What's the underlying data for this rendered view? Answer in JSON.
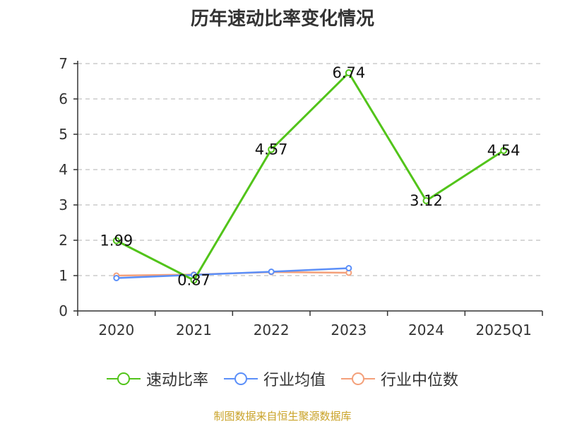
{
  "title": "历年速动比率变化情况",
  "source": "制图数据来自恒生聚源数据库",
  "chart_data": {
    "type": "line",
    "categories": [
      "2020",
      "2021",
      "2022",
      "2023",
      "2024",
      "2025Q1"
    ],
    "ylim": [
      0,
      7
    ],
    "yticks": [
      0,
      1,
      2,
      3,
      4,
      5,
      6,
      7
    ],
    "grid": true,
    "legend_position": "bottom",
    "series": [
      {
        "name": "速动比率",
        "color": "#52c41a",
        "values": [
          1.99,
          0.87,
          4.57,
          6.74,
          3.12,
          4.54
        ],
        "data_labels": [
          "1.99",
          "0.87",
          "4.57",
          "6.74",
          "3.12",
          "4.54"
        ]
      },
      {
        "name": "行业均值",
        "color": "#5b8ff9",
        "values": [
          0.93,
          1.02,
          1.11,
          1.21,
          null,
          null
        ]
      },
      {
        "name": "行业中位数",
        "color": "#f4a07a",
        "values": [
          1.0,
          1.03,
          1.1,
          1.08,
          null,
          null
        ]
      }
    ]
  }
}
